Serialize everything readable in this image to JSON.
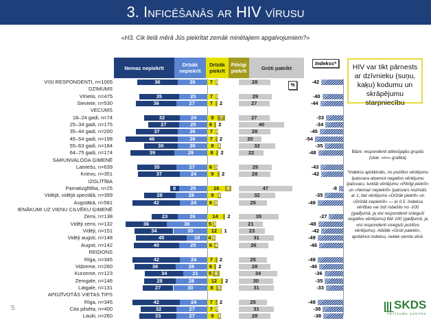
{
  "title": "3. Inficēšanās ar HIV vīrusu",
  "question": "«H3. Cik lielā mērā Jūs piekrītat zemāk minētajiem apgalvojumiem?»",
  "statement": "HIV var tikt pārnests ar dzīvnieku (suņu, kaķu) kodumu un skrāpējumu starpniecību",
  "index_label": "Indekss*",
  "percent_label": "%",
  "base_note": "Bāze: respondenti attiecīgajās grupās (skat. «n=» grafikā)",
  "index_note": "*Indekss aprēķināts, no pozitīvo vērtējumu īpatsvara atņemot negatīvo vērtējumu īpatsvaru, turklāt vērtējumu «Pilnīgi piekrīt» un «Nemaz nepiekrīt» īpatsvars reizināts ar 1, bet vērtējumu «Drīzāk piekrīt» un «Drīzāk nepiekrīt» — ar 0,5. Indeksa vērtības var būt robežās no -100 (gadījumā, ja visi respondenti snieguši negatīvu vērtējumu) līdz 100 (gadījumā, ja visi respondenti snieguši pozitīvu vērtējumu). Atbilde «Grūti pateikt», aprēķinot indeksu, netiek ņemta vērā.",
  "page_number": "5",
  "logo": {
    "name": "SKDS",
    "sub": "PĒTĪJUMU CENTRS"
  },
  "colors": {
    "nemaz": "#1f3f7a",
    "drizak_nep": "#5b86d4",
    "drizak_piek": "#e5e000",
    "pilnigi": "#a39b1e",
    "gruti": "#c9c9c9"
  },
  "chart_data": {
    "type": "bar",
    "orientation": "horizontal-diverging",
    "legend": [
      "Nemaz nepiekrīt",
      "Drīzāk nepiekrīt",
      "Drīzāk piekrīt",
      "Pilnīgi piekrīt",
      "Grūti pateikt"
    ],
    "unit": "%",
    "rows": [
      {
        "label": "VISI RESPONDENTI, n=1005",
        "values": [
          36,
          26,
          7,
          3,
          28
        ],
        "index": -42
      },
      {
        "label": "DZIMUMS",
        "header": true
      },
      {
        "label": "Vīrietis, n=475",
        "values": [
          35,
          25,
          7,
          3,
          29
        ],
        "index": -40
      },
      {
        "label": "Sieviete, n=530",
        "values": [
          36,
          27,
          7,
          2,
          27
        ],
        "index": -44
      },
      {
        "label": "VECUMS",
        "header": true
      },
      {
        "label": "18–24 gadi, n=74",
        "values": [
          32,
          24,
          9,
          7,
          27
        ],
        "index": -33
      },
      {
        "label": "25–34 gadi, n=175",
        "values": [
          27,
          25,
          6,
          2,
          40
        ],
        "index": -34
      },
      {
        "label": "35–44 gadi, n=200",
        "values": [
          37,
          26,
          7,
          3,
          28
        ],
        "index": -45
      },
      {
        "label": "45–54 gadi, n=198",
        "values": [
          46,
          26,
          7,
          2,
          20
        ],
        "index": -54
      },
      {
        "label": "55–63 gadi, n=184",
        "values": [
          30,
          26,
          9,
          3,
          32
        ],
        "index": -35
      },
      {
        "label": "64–75 gadi, n=174",
        "values": [
          39,
          29,
          8,
          2,
          22
        ],
        "index": -48
      },
      {
        "label": "SARUNVALODA ĢIMENĒ",
        "header": true
      },
      {
        "label": "Latviešu, n=639",
        "values": [
          35,
          27,
          6,
          3,
          29
        ],
        "index": -43
      },
      {
        "label": "Krievu, n=351",
        "values": [
          37,
          24,
          9,
          2,
          28
        ],
        "index": -42
      },
      {
        "label": "IZGLĪTĪBA",
        "header": true
      },
      {
        "label": "Pamatizglītība, n=25",
        "values": [
          8,
          25,
          16,
          5,
          47
        ],
        "index": -8
      },
      {
        "label": "Vidējā, vidējā speciālā, n=399",
        "values": [
          28,
          28,
          9,
          3,
          32
        ],
        "index": -35
      },
      {
        "label": "Augstākā, n=581",
        "values": [
          42,
          24,
          6,
          3,
          25
        ],
        "index": -49
      },
      {
        "label": "IENĀKUMI UZ VIENU CILVĒKU ĢIMENĒ",
        "header": true
      },
      {
        "label": "Zemi, n=138",
        "values": [
          23,
          26,
          14,
          2,
          35
        ],
        "index": -27
      },
      {
        "label": "Vidēji zemi, n=132",
        "values": [
          36,
          36,
          5,
          3,
          21
        ],
        "index": -48
      },
      {
        "label": "Vidēji, n=151",
        "values": [
          34,
          30,
          12,
          1,
          23
        ],
        "index": -42
      },
      {
        "label": "Vidēji augsti, n=148",
        "values": [
          45,
          18,
          4,
          3,
          31
        ],
        "index": -49
      },
      {
        "label": "Augsti, n=142",
        "values": [
          40,
          25,
          6,
          4,
          26
        ],
        "index": -46
      },
      {
        "label": "REĢIONS",
        "header": true
      },
      {
        "label": "Rīga, n=345",
        "values": [
          42,
          24,
          7,
          2,
          25
        ],
        "index": -49
      },
      {
        "label": "Vidzeme, n=260",
        "values": [
          36,
          28,
          6,
          2,
          28
        ],
        "index": -46
      },
      {
        "label": "Kurzeme, n=123",
        "values": [
          34,
          21,
          5,
          6,
          34
        ],
        "index": -36
      },
      {
        "label": "Zemgale, n=146",
        "values": [
          28,
          28,
          12,
          2,
          30
        ],
        "index": -35
      },
      {
        "label": "Latgale, n=131",
        "values": [
          27,
          30,
          8,
          5,
          31
        ],
        "index": -33
      },
      {
        "label": "APDZĪVOTĀS VIETAS TIPS",
        "header": true
      },
      {
        "label": "Rīga, n=345",
        "values": [
          42,
          24,
          7,
          2,
          25
        ],
        "index": -49
      },
      {
        "label": "Cita pilsēta, n=400",
        "values": [
          32,
          27,
          7,
          3,
          31
        ],
        "index": -39
      },
      {
        "label": "Lauki, n=260",
        "values": [
          33,
          27,
          9,
          3,
          28
        ],
        "index": -38
      }
    ]
  }
}
